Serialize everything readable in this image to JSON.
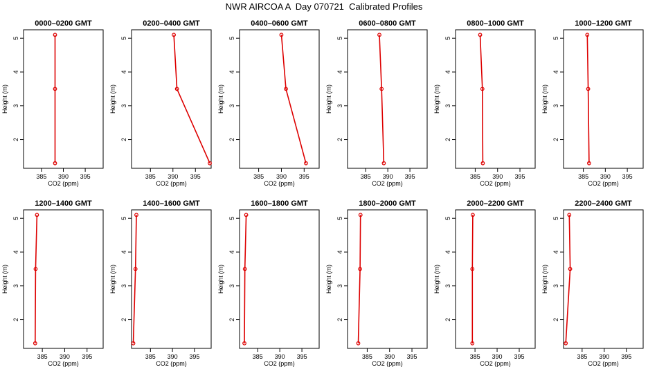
{
  "title": "NWR AIRCOA A  Day 070721  Calibrated Profiles",
  "series_color": "#dd0000",
  "chart_data": {
    "type": "line",
    "xlabel": "CO2 (ppm)",
    "ylabel": "Height (m)",
    "x_ticks": [
      385,
      390,
      395
    ],
    "y_ticks": [
      2,
      3,
      4,
      5
    ],
    "heights": [
      1.3,
      3.5,
      5.1
    ],
    "panels": [
      {
        "title": "0000–0200 GMT",
        "xlim": [
          380.9,
          399.1
        ],
        "co2": [
          388.1,
          388.1,
          388.1
        ]
      },
      {
        "title": "0200–0400 GMT",
        "xlim": [
          380.8,
          398.5
        ],
        "co2": [
          398.2,
          390.9,
          390.2
        ]
      },
      {
        "title": "0400–0600 GMT",
        "xlim": [
          380.8,
          398.3
        ],
        "co2": [
          395.4,
          391.0,
          390.0
        ]
      },
      {
        "title": "0600–0800 GMT",
        "xlim": [
          380.9,
          398.9
        ],
        "co2": [
          389.1,
          388.6,
          388.1
        ]
      },
      {
        "title": "0800–1000 GMT",
        "xlim": [
          380.6,
          398.4
        ],
        "co2": [
          386.7,
          386.6,
          386.1
        ]
      },
      {
        "title": "1000–1200 GMT",
        "xlim": [
          380.5,
          398.6
        ],
        "co2": [
          386.3,
          386.1,
          385.9
        ]
      },
      {
        "title": "1200–1400 GMT",
        "xlim": [
          380.8,
          398.6
        ],
        "co2": [
          383.4,
          383.5,
          383.8
        ]
      },
      {
        "title": "1400–1600 GMT",
        "xlim": [
          380.7,
          398.8
        ],
        "co2": [
          381.1,
          381.6,
          381.8
        ]
      },
      {
        "title": "1600–1800 GMT",
        "xlim": [
          380.9,
          398.9
        ],
        "co2": [
          382.0,
          382.1,
          382.4
        ]
      },
      {
        "title": "1800–2000 GMT",
        "xlim": [
          380.6,
          398.4
        ],
        "co2": [
          383.0,
          383.4,
          383.5
        ]
      },
      {
        "title": "2000–2200 GMT",
        "xlim": [
          380.6,
          398.6
        ],
        "co2": [
          384.4,
          384.4,
          384.5
        ]
      },
      {
        "title": "2200–2400 GMT",
        "xlim": [
          380.8,
          398.8
        ],
        "co2": [
          381.3,
          382.3,
          382.1
        ]
      }
    ]
  }
}
